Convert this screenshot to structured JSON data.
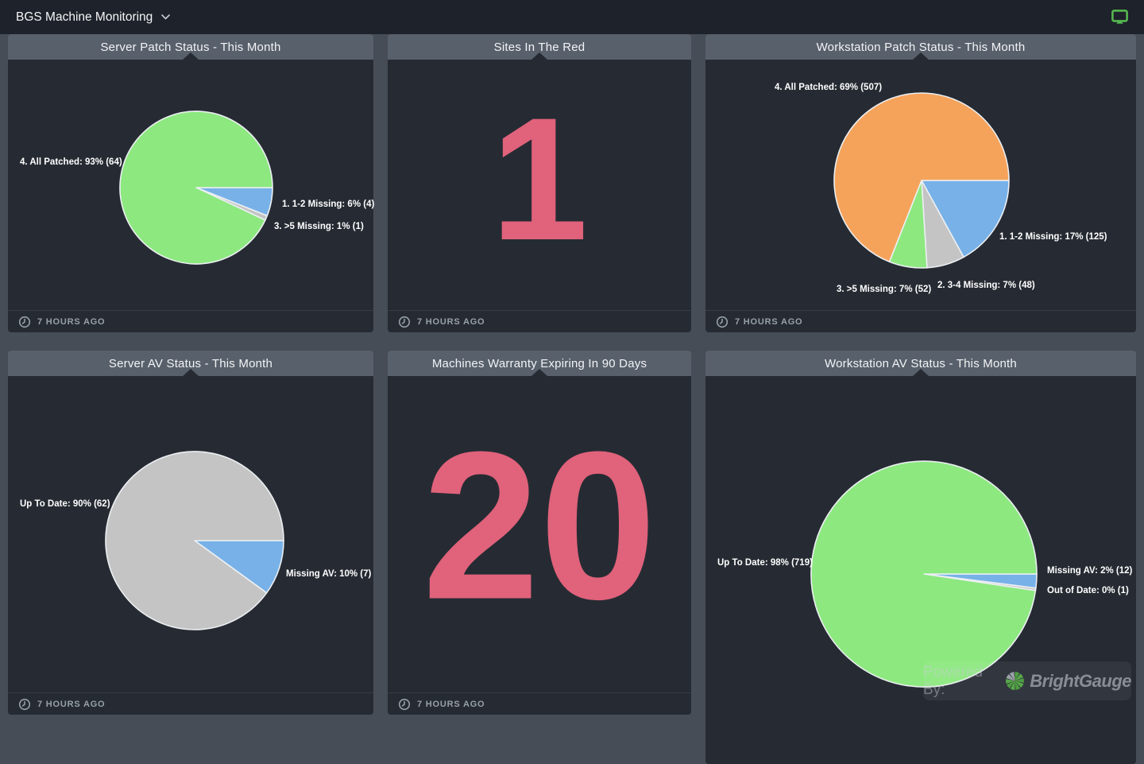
{
  "top_bar": {
    "title": "BGS Machine Monitoring"
  },
  "powered_by": {
    "prefix": "Powered By:",
    "brand": "BrightGauge"
  },
  "colors": {
    "page_bg": "#474d57",
    "top_bar_bg": "#1e222a",
    "panel_bg": "#262b33",
    "panel_header_bg": "#58606b",
    "number_pink": "#e0627b",
    "pie_blue": "#77b1e8",
    "pie_gray": "#c4c4c4",
    "pie_green": "#8ce87f",
    "pie_orange": "#f5a35b",
    "monitor_icon_green": "#55b84f"
  },
  "panels": [
    {
      "title": "Server Patch Status - This Month",
      "updated": "7 HOURS AGO",
      "chart_data": {
        "type": "pie",
        "title": "Server Patch Status - This Month",
        "legend_position": "none",
        "slices": [
          {
            "label": "1. 1-2 Missing: 6% (4)",
            "name": "1. 1-2 Missing",
            "percent": 6,
            "count": 4,
            "color": "#77b1e8"
          },
          {
            "label": "3. >5 Missing: 1% (1)",
            "name": "3. >5 Missing",
            "percent": 1,
            "count": 1,
            "color": "#c4c4c4"
          },
          {
            "label": "4. All Patched: 93% (64)",
            "name": "4. All Patched",
            "percent": 93,
            "count": 64,
            "color": "#8ce87f"
          }
        ]
      }
    },
    {
      "title": "Sites In The Red",
      "updated": "7 HOURS AGO",
      "chart_data": {
        "type": "number",
        "value": 1,
        "color": "#e0627b"
      }
    },
    {
      "title": "Workstation Patch Status - This Month",
      "updated": "7 HOURS AGO",
      "chart_data": {
        "type": "pie",
        "title": "Workstation Patch Status - This Month",
        "legend_position": "none",
        "slices": [
          {
            "label": "1. 1-2 Missing: 17% (125)",
            "name": "1. 1-2 Missing",
            "percent": 17,
            "count": 125,
            "color": "#77b1e8"
          },
          {
            "label": "2. 3-4 Missing: 7% (48)",
            "name": "2. 3-4 Missing",
            "percent": 7,
            "count": 48,
            "color": "#c4c4c4"
          },
          {
            "label": "3. >5 Missing: 7% (52)",
            "name": "3. >5 Missing",
            "percent": 7,
            "count": 52,
            "color": "#8ce87f"
          },
          {
            "label": "4. All Patched: 69% (507)",
            "name": "4. All Patched",
            "percent": 69,
            "count": 507,
            "color": "#f5a35b"
          }
        ]
      }
    },
    {
      "title": "Server AV Status - This Month",
      "updated": "7 HOURS AGO",
      "chart_data": {
        "type": "pie",
        "title": "Server AV Status - This Month",
        "legend_position": "none",
        "slices": [
          {
            "label": "Missing AV: 10% (7)",
            "name": "Missing AV",
            "percent": 10,
            "count": 7,
            "color": "#77b1e8"
          },
          {
            "label": "Up To Date: 90% (62)",
            "name": "Up To Date",
            "percent": 90,
            "count": 62,
            "color": "#c4c4c4"
          }
        ]
      }
    },
    {
      "title": "Machines Warranty Expiring In 90 Days",
      "updated": "7 HOURS AGO",
      "chart_data": {
        "type": "number",
        "value": 20,
        "color": "#e0627b"
      }
    },
    {
      "title": "Workstation AV Status - This Month",
      "chart_data": {
        "type": "pie",
        "title": "Workstation AV Status - This Month",
        "legend_position": "none",
        "slices": [
          {
            "label": "Missing AV: 2% (12)",
            "name": "Missing AV",
            "percent": 2,
            "count": 12,
            "color": "#77b1e8"
          },
          {
            "label": "Out of Date: 0% (1)",
            "name": "Out of Date",
            "percent": 0,
            "count": 1,
            "color": "#c4c4c4"
          },
          {
            "label": "Up To Date: 98% (719)",
            "name": "Up To Date",
            "percent": 98,
            "count": 719,
            "color": "#8ce87f"
          }
        ]
      }
    }
  ]
}
